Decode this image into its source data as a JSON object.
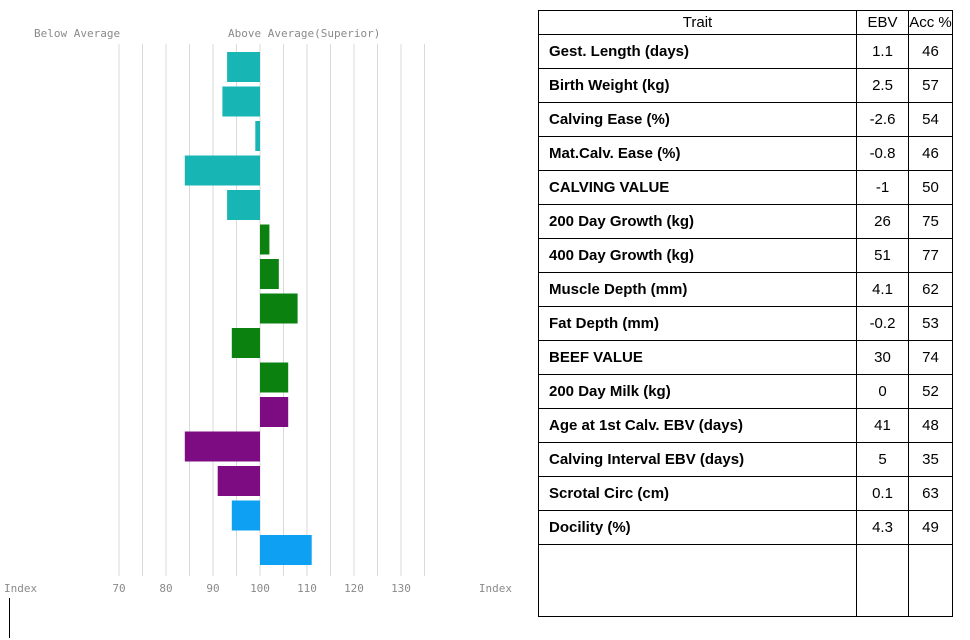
{
  "chart_data": {
    "type": "bar",
    "orientation": "horizontal",
    "baseline": 100,
    "xlim": [
      58,
      142
    ],
    "top_left_label": "Below Average",
    "top_right_label": "Above Average(Superior)",
    "x_ticks": [
      {
        "label": "Index",
        "kind": "word"
      },
      {
        "label": "70",
        "value": 70
      },
      {
        "label": "80",
        "value": 80
      },
      {
        "label": "90",
        "value": 90
      },
      {
        "label": "100",
        "value": 100
      },
      {
        "label": "110",
        "value": 110
      },
      {
        "label": "120",
        "value": 120
      },
      {
        "label": "130",
        "value": 130
      },
      {
        "label": "Index",
        "kind": "word"
      }
    ],
    "gridlines": [
      70,
      75,
      80,
      85,
      90,
      95,
      100,
      105,
      110,
      115,
      120,
      125,
      130,
      135
    ],
    "grid": true,
    "categories": [
      "Gest. Length (days)",
      "Birth Weight (kg)",
      "Calving Ease (%)",
      "Mat.Calv. Ease (%)",
      "CALVING VALUE",
      "200 Day Growth (kg)",
      "400 Day Growth (kg)",
      "Muscle Depth (mm)",
      "Fat Depth (mm)",
      "BEEF VALUE",
      "200 Day Milk (kg)",
      "Age at 1st Calv. EBV (days)",
      "Calving Interval EBV (days)",
      "Scrotal Circ (cm)",
      "Docility (%)"
    ],
    "values": [
      93,
      92,
      99,
      84,
      93,
      102,
      104,
      108,
      94,
      106,
      106,
      84,
      91,
      94,
      111
    ],
    "colors": [
      "#18b5b5",
      "#18b5b5",
      "#18b5b5",
      "#18b5b5",
      "#18b5b5",
      "#0b8210",
      "#0b8210",
      "#0b8210",
      "#0b8210",
      "#0b8210",
      "#7d0c82",
      "#7d0c82",
      "#7d0c82",
      "#0ea0f2",
      "#0ea0f2"
    ]
  },
  "table": {
    "headers": {
      "trait": "Trait",
      "ebv": "EBV",
      "acc": "Acc %"
    },
    "rows": [
      {
        "trait": "Gest. Length (days)",
        "ebv": "1.1",
        "acc": "46"
      },
      {
        "trait": "Birth Weight (kg)",
        "ebv": "2.5",
        "acc": "57"
      },
      {
        "trait": "Calving Ease (%)",
        "ebv": "-2.6",
        "acc": "54"
      },
      {
        "trait": "Mat.Calv. Ease (%)",
        "ebv": "-0.8",
        "acc": "46"
      },
      {
        "trait": "CALVING VALUE",
        "ebv": "-1",
        "acc": "50"
      },
      {
        "trait": "200 Day Growth (kg)",
        "ebv": "26",
        "acc": "75"
      },
      {
        "trait": "400 Day Growth (kg)",
        "ebv": "51",
        "acc": "77"
      },
      {
        "trait": "Muscle Depth (mm)",
        "ebv": "4.1",
        "acc": "62"
      },
      {
        "trait": "Fat Depth (mm)",
        "ebv": "-0.2",
        "acc": "53"
      },
      {
        "trait": "BEEF VALUE",
        "ebv": "30",
        "acc": "74"
      },
      {
        "trait": "200 Day Milk (kg)",
        "ebv": "0",
        "acc": "52"
      },
      {
        "trait": "Age at 1st Calv. EBV (days)",
        "ebv": "41",
        "acc": "48"
      },
      {
        "trait": "Calving Interval EBV (days)",
        "ebv": "5",
        "acc": "35"
      },
      {
        "trait": "Scrotal Circ (cm)",
        "ebv": "0.1",
        "acc": "63"
      },
      {
        "trait": "Docility (%)",
        "ebv": "4.3",
        "acc": "49"
      }
    ]
  }
}
